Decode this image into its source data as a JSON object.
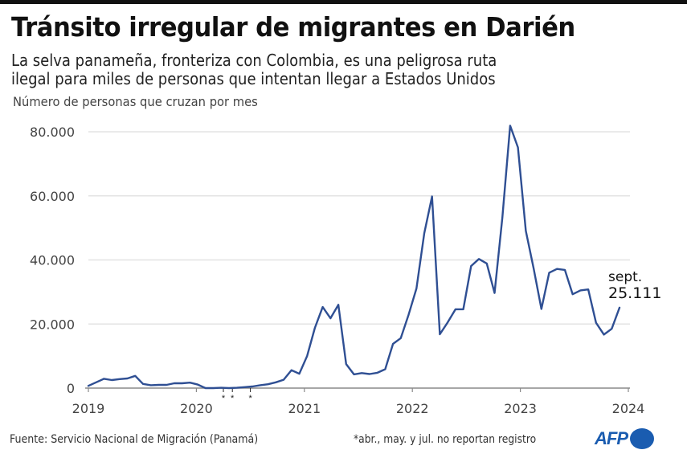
{
  "header": {
    "title": "Tránsito irregular de migrantes en Darién",
    "subtitle_line1": "La selva panameña, fronteriza con Colombia, es una peligrosa ruta",
    "subtitle_line2": "ilegal para miles de personas que intentan llegar a Estados Unidos",
    "unit_label": "Número de personas que cruzan por mes"
  },
  "footer": {
    "source": "Fuente: Servicio Nacional de Migración (Panamá)",
    "note": "*abr., may. y jul. no reportan registro",
    "logo": "AFP"
  },
  "colors": {
    "line": "#2f4f93",
    "grid": "#e3e3e3",
    "axis": "#8a8a8a",
    "logo": "#1a5cb0"
  },
  "chart_data": {
    "type": "line",
    "title": "Tránsito irregular de migrantes en Darién",
    "ylabel": "Número de personas que cruzan por mes",
    "xlabel": "",
    "ylim": [
      0,
      80000
    ],
    "yticks": [
      0,
      20000,
      40000,
      60000,
      80000
    ],
    "ytick_labels": [
      "0",
      "20.000",
      "40.000",
      "60.000",
      "80.000"
    ],
    "xtick_labels": [
      "2019",
      "2020",
      "2021",
      "2022",
      "2023",
      "2024"
    ],
    "grid": true,
    "start": "2019-01",
    "end": "2024-09",
    "series": [
      {
        "name": "Personas por mes",
        "values": [
          700,
          1800,
          2900,
          2500,
          2800,
          3000,
          3800,
          1300,
          900,
          1000,
          1000,
          1500,
          1500,
          1700,
          1100,
          0,
          0,
          100,
          0,
          100,
          300,
          500,
          900,
          1200,
          1800,
          2600,
          5600,
          4500,
          10000,
          18800,
          25300,
          21800,
          26000,
          7500,
          4300,
          4700,
          4400,
          4800,
          5900,
          13800,
          15600,
          22900,
          31100,
          48300,
          59800,
          16800,
          20500,
          24600,
          24600,
          38100,
          40300,
          38900,
          29700,
          53200,
          81900,
          75100,
          49100,
          37400,
          24700,
          36000,
          37200,
          36900,
          29300,
          30500,
          30800,
          20400,
          16700,
          18500,
          25111
        ]
      }
    ],
    "missing_months_marked": [
      "2020-04",
      "2020-05",
      "2020-07"
    ],
    "missing_marker": "*",
    "annotation": {
      "label_month": "sept.",
      "label_value": "25.111"
    }
  }
}
